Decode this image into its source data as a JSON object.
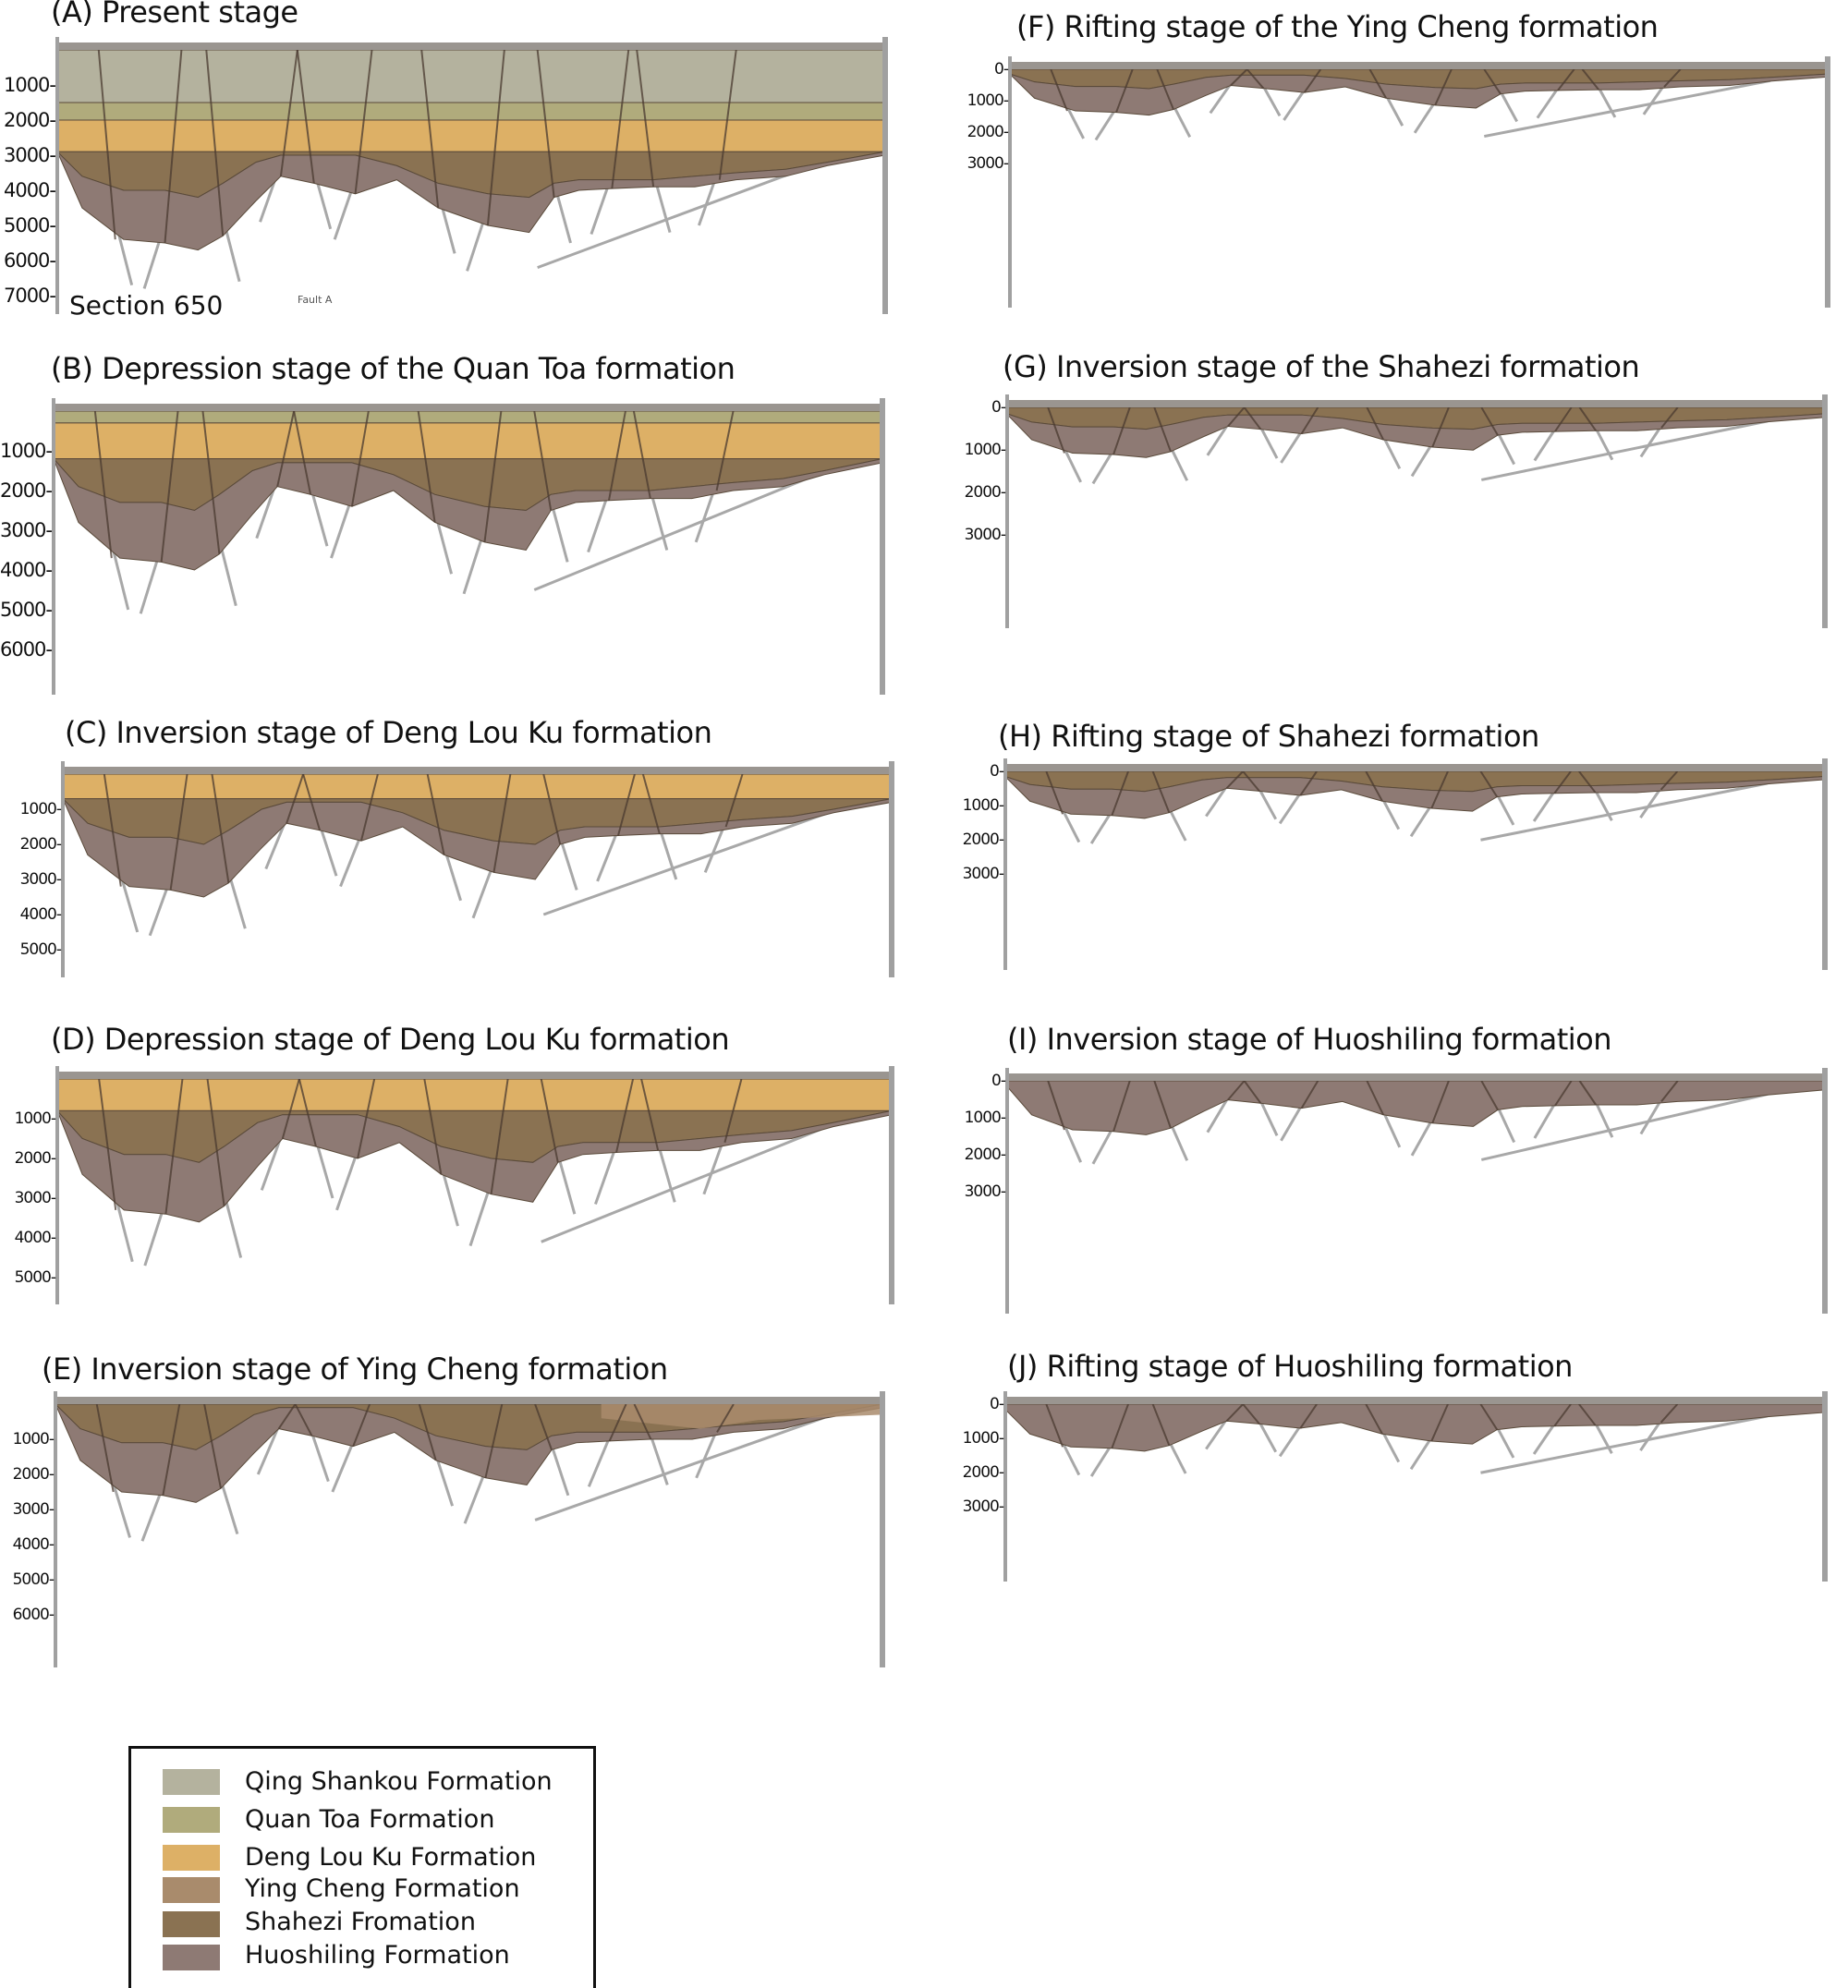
{
  "panels": [
    {
      "id": "A",
      "title": "(A) Present stage",
      "ticks": [
        "1000-",
        "2000-",
        "3000-",
        "4000-",
        "5000-",
        "6000-",
        "7000-"
      ],
      "ticks_m": [
        1000,
        2000,
        3000,
        4000,
        5000,
        6000,
        7000
      ]
    },
    {
      "id": "B",
      "title": "(B) Depression stage of the Quan Toa formation",
      "ticks": [
        "1000-",
        "2000-",
        "3000-",
        "4000-",
        "5000-",
        "6000-"
      ],
      "ticks_m": [
        1000,
        2000,
        3000,
        4000,
        5000,
        6000
      ]
    },
    {
      "id": "C",
      "title": "(C) Inversion stage of Deng Lou Ku formation",
      "ticks": [
        "1000-",
        "2000-",
        "3000-",
        "4000-",
        "5000-"
      ],
      "ticks_m": [
        1000,
        2000,
        3000,
        4000,
        5000
      ]
    },
    {
      "id": "D",
      "title": "(D) Depression stage of Deng Lou Ku formation",
      "ticks": [
        "1000-",
        "2000-",
        "3000-",
        "4000-",
        "5000-"
      ],
      "ticks_m": [
        1000,
        2000,
        3000,
        4000,
        5000
      ]
    },
    {
      "id": "E",
      "title": "(E) Inversion stage of Ying Cheng formation",
      "ticks": [
        "1000-",
        "2000-",
        "3000-",
        "4000-",
        "5000-",
        "6000-"
      ],
      "ticks_m": [
        1000,
        2000,
        3000,
        4000,
        5000,
        6000
      ]
    },
    {
      "id": "F",
      "title": "(F) Rifting stage of the Ying Cheng formation",
      "ticks": [
        "0-",
        "1000-",
        "2000-",
        "3000-"
      ],
      "ticks_m": [
        0,
        1000,
        2000,
        3000
      ]
    },
    {
      "id": "G",
      "title": "(G) Inversion stage of the Shahezi formation",
      "ticks": [
        "0-",
        "1000-",
        "2000-",
        "3000-"
      ],
      "ticks_m": [
        0,
        1000,
        2000,
        3000
      ]
    },
    {
      "id": "H",
      "title": "(H) Rifting stage of Shahezi formation",
      "ticks": [
        "0-",
        "1000-",
        "2000-",
        "3000-"
      ],
      "ticks_m": [
        0,
        1000,
        2000,
        3000
      ]
    },
    {
      "id": "I",
      "title": "(I) Inversion stage of Huoshiling formation",
      "ticks": [
        "0-",
        "1000-",
        "2000-",
        "3000-"
      ],
      "ticks_m": [
        0,
        1000,
        2000,
        3000
      ]
    },
    {
      "id": "J",
      "title": "(J) Rifting stage of Huoshiling formation",
      "ticks": [
        "0-",
        "1000-",
        "2000-",
        "3000-"
      ],
      "ticks_m": [
        0,
        1000,
        2000,
        3000
      ]
    }
  ],
  "section_label": "Section 650",
  "fault_label": "Fault A",
  "legend": [
    {
      "label": "Qing Shankou Formation",
      "color": "#b4b29e"
    },
    {
      "label": "Quan Toa Formation",
      "color": "#b0ab7c"
    },
    {
      "label": "Deng Lou Ku Formation",
      "color": "#ddb066"
    },
    {
      "label": "Ying Cheng Formation",
      "color": "#a98b6c"
    },
    {
      "label": "Shahezi Fromation",
      "color": "#8a7252"
    },
    {
      "label": "Huoshiling Formation",
      "color": "#8e7a74"
    }
  ]
}
